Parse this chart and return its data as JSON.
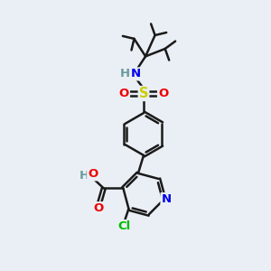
{
  "bg_color": "#eaeff5",
  "bond_color": "#1a1a1a",
  "bond_width": 1.8,
  "dbo": 0.055,
  "colors": {
    "C": "#1a1a1a",
    "N": "#0000ee",
    "O": "#ee0000",
    "S": "#cccc00",
    "Cl": "#00bb00",
    "H": "#6a9a9a",
    "NH": "#0000ee"
  },
  "font_size": 9.5,
  "fig_size": [
    3.0,
    3.0
  ],
  "dpi": 100
}
